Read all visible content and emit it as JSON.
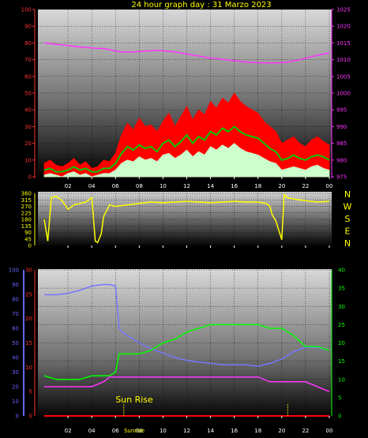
{
  "title": "24 hour graph day : 31 Marzo 2023",
  "chart_data": [
    {
      "type": "line",
      "name": "wind speed and pressure",
      "x_ticks": [
        "02",
        "04",
        "06",
        "08",
        "10",
        "12",
        "14",
        "16",
        "18",
        "20",
        "22",
        "00"
      ],
      "left_axis": {
        "min": 0,
        "max": 100,
        "step": 10,
        "color": "#ff3333"
      },
      "right_axis": {
        "min": 975,
        "max": 1025,
        "step": 5,
        "color": "#ff33ff"
      },
      "hours": [
        0,
        0.5,
        1,
        1.5,
        2,
        2.5,
        3,
        3.5,
        4,
        4.5,
        5,
        5.5,
        6,
        6.5,
        7,
        7.5,
        8,
        8.5,
        9,
        9.5,
        10,
        10.5,
        11,
        11.5,
        12,
        12.5,
        13,
        13.5,
        14,
        14.5,
        15,
        15.5,
        16,
        16.5,
        17,
        17.5,
        18,
        18.5,
        19,
        19.5,
        20,
        20.5,
        21,
        21.5,
        22,
        22.5,
        23,
        23.5,
        24
      ],
      "series": [
        {
          "color": "#ff0000",
          "values": [
            8,
            10,
            7,
            6,
            8,
            11,
            7,
            9,
            5,
            6,
            10,
            9,
            14,
            25,
            32,
            28,
            35,
            30,
            31,
            27,
            33,
            38,
            30,
            36,
            42,
            34,
            40,
            37,
            45,
            41,
            47,
            44,
            50,
            45,
            42,
            40,
            38,
            33,
            30,
            27,
            20,
            22,
            24,
            20,
            18,
            22,
            24,
            21,
            19
          ]
        },
        {
          "color": "#00cc00",
          "values": [
            4,
            5,
            3,
            3,
            4,
            6,
            4,
            5,
            3,
            3,
            5,
            5,
            8,
            14,
            18,
            16,
            19,
            17,
            18,
            15,
            20,
            22,
            18,
            21,
            25,
            20,
            24,
            22,
            27,
            25,
            29,
            27,
            30,
            27,
            25,
            24,
            23,
            20,
            17,
            15,
            10,
            11,
            13,
            11,
            10,
            12,
            13,
            12,
            10
          ]
        },
        {
          "color": "#ccffcc",
          "values": [
            1,
            2,
            1,
            0,
            2,
            3,
            1,
            2,
            0,
            1,
            2,
            2,
            4,
            8,
            10,
            9,
            12,
            10,
            11,
            9,
            13,
            14,
            11,
            13,
            16,
            12,
            15,
            13,
            18,
            16,
            19,
            17,
            20,
            17,
            15,
            14,
            13,
            11,
            9,
            8,
            4,
            5,
            6,
            5,
            4,
            6,
            7,
            5,
            4
          ]
        },
        {
          "color": "#ff33ff",
          "axis": "right",
          "values": [
            1015,
            1014.8,
            1014.6,
            1014.4,
            1014.2,
            1014,
            1013.8,
            1013.6,
            1013.5,
            1013.4,
            1013.3,
            1013,
            1012.6,
            1012.3,
            1012.2,
            1012.3,
            1012.4,
            1012.6,
            1012.7,
            1012.8,
            1012.7,
            1012.5,
            1012.3,
            1012,
            1011.7,
            1011.4,
            1011.1,
            1010.8,
            1010.5,
            1010.3,
            1010.1,
            1009.9,
            1009.7,
            1009.5,
            1009.3,
            1009.2,
            1009.1,
            1009,
            1009,
            1009,
            1009.1,
            1009.3,
            1009.6,
            1010,
            1010.4,
            1010.9,
            1011.3,
            1011.7,
            1012
          ]
        }
      ]
    },
    {
      "type": "line",
      "name": "wind direction",
      "x_ticks": [
        "02",
        "04",
        "06",
        "08",
        "10",
        "12",
        "14",
        "16",
        "18",
        "20",
        "22",
        "00"
      ],
      "left_axis": {
        "ticks": [
          0,
          45,
          90,
          135,
          180,
          225,
          270,
          315,
          360
        ]
      },
      "compass": [
        "N",
        "W",
        "S",
        "E",
        "N"
      ],
      "hours": [
        0,
        0.3,
        0.6,
        1,
        1.5,
        2,
        2.5,
        3,
        3.5,
        4,
        4.3,
        4.5,
        4.8,
        5,
        5.5,
        6,
        7,
        8,
        9,
        10,
        11,
        12,
        13,
        14,
        15,
        16,
        17,
        18,
        18.7,
        19,
        19.2,
        19.5,
        20,
        20.2,
        20.5,
        21,
        22,
        23,
        24
      ],
      "series": [
        {
          "color": "#ffff00",
          "values": [
            180,
            30,
            330,
            340,
            310,
            250,
            280,
            290,
            300,
            330,
            30,
            20,
            80,
            200,
            280,
            270,
            280,
            290,
            300,
            295,
            300,
            305,
            300,
            295,
            300,
            305,
            300,
            300,
            290,
            270,
            210,
            170,
            40,
            350,
            330,
            320,
            310,
            300,
            305
          ]
        }
      ]
    },
    {
      "type": "line",
      "name": "humidity temperature and uv",
      "x_ticks": [
        "02",
        "04",
        "06",
        "08",
        "10",
        "12",
        "14",
        "16",
        "18",
        "20",
        "22",
        "00"
      ],
      "left_axis_humidity": {
        "min": 0,
        "max": 100,
        "step": 10,
        "color": "#6666ff"
      },
      "left_axis_temp": {
        "min": 0,
        "max": 30,
        "step": 5,
        "color": "#ff3333"
      },
      "right_axis": {
        "min": 0,
        "max": 40,
        "step": 5,
        "color": "#00ff00"
      },
      "annotations": [
        "Sun Rise",
        "Sunrise"
      ],
      "hours": [
        0,
        1,
        2,
        3,
        4,
        5,
        5.5,
        6,
        6.3,
        6.6,
        7,
        8,
        9,
        10,
        11,
        12,
        13,
        14,
        15,
        16,
        17,
        18,
        19,
        20,
        21,
        22,
        23,
        24
      ],
      "series": [
        {
          "color": "#7777ff",
          "axis": "humidity",
          "values": [
            83,
            83,
            84,
            86,
            89,
            90,
            90,
            89,
            60,
            57,
            55,
            50,
            46,
            43,
            40,
            38,
            37,
            36,
            35,
            35,
            35,
            34,
            36,
            39,
            44,
            47,
            47,
            45
          ]
        },
        {
          "color": "#00ff00",
          "axis": "right",
          "values": [
            11,
            10,
            10,
            10,
            11,
            11,
            11,
            12,
            17,
            17,
            17,
            17,
            18,
            20,
            21,
            23,
            24,
            25,
            25,
            25,
            25,
            25,
            24,
            24,
            22,
            19,
            19,
            18
          ]
        },
        {
          "color": "#ff33ff",
          "axis": "temp",
          "values": [
            6,
            6,
            6,
            6,
            6,
            7,
            8,
            8,
            8,
            8,
            8,
            8,
            8,
            8,
            8,
            8,
            8,
            8,
            8,
            8,
            8,
            8,
            7,
            7,
            7,
            7,
            6,
            5
          ]
        },
        {
          "color": "#ff0000",
          "axis": "temp",
          "values": [
            0,
            0,
            0,
            0,
            0,
            0,
            0,
            0,
            0,
            0,
            0,
            0,
            0,
            0,
            0,
            0,
            0,
            0,
            0,
            0,
            0,
            0,
            0,
            0,
            0,
            0,
            0,
            0
          ]
        }
      ]
    }
  ]
}
